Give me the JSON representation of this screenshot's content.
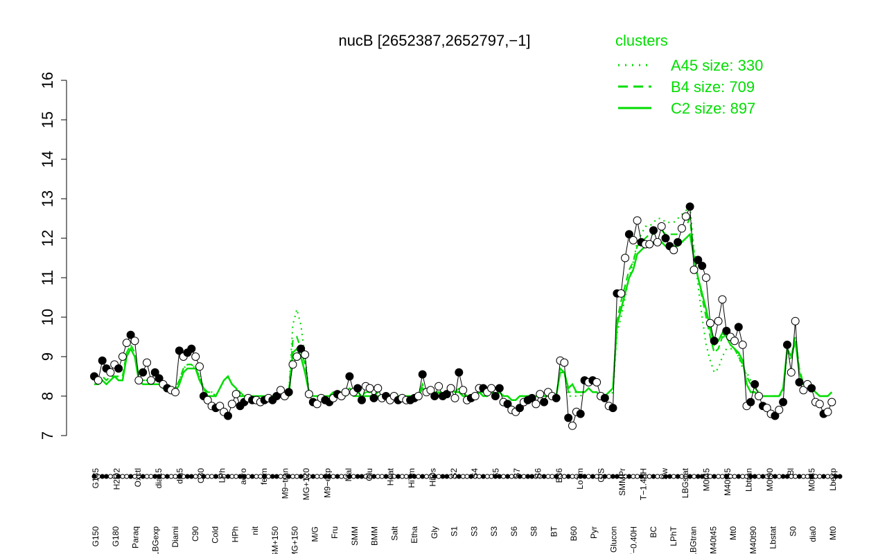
{
  "chart_data": {
    "type": "line",
    "title": "nucB [2652387,2652797,−1]",
    "xlabel": "",
    "ylabel": "",
    "ylim": [
      7,
      16
    ],
    "yticks": [
      7,
      8,
      9,
      10,
      11,
      12,
      13,
      14,
      15,
      16
    ],
    "x_tick_labels_upper": [
      "G135",
      "H2O2",
      "Oxctl",
      "dia15",
      "dia5",
      "C30",
      "LPh",
      "aero",
      "ferm",
      "M9−tran",
      "MG+120",
      "M9−exp",
      "Mal",
      "Glu",
      "Heat",
      "HiTm",
      "HiOs",
      "S2",
      "S4",
      "S5",
      "S7",
      "S6",
      "B36",
      "LoTm",
      "G/S",
      "SMMPr",
      "T−1.40H",
      "Sw",
      "LBGstat",
      "M0t45",
      "M40t45",
      "Lbtran",
      "M0t90",
      "Bl",
      "M0t45",
      "Lbexp"
    ],
    "x_tick_labels_lower": [
      "G150",
      "G180",
      "Paraq",
      "LBGexp",
      "Diami",
      "C90",
      "Cold",
      "HPh",
      "nit",
      "GM+150",
      "MG+150",
      "M/G",
      "Fru",
      "SMM",
      "BMM",
      "Salt",
      "Etha",
      "Gly",
      "S1",
      "S3",
      "S3",
      "S6",
      "S8",
      "BT",
      "B60",
      "Pyr",
      "Glucon",
      "T−0.40H",
      "BC",
      "LPhT",
      "LBGtran",
      "M40t45",
      "Mt0",
      "M40t90",
      "Lbstat",
      "S0",
      "dia0",
      "Mt0"
    ],
    "legend": {
      "title": "clusters",
      "position": "top-right",
      "entries": [
        {
          "label": "A45 size: 330",
          "style": "dotted"
        },
        {
          "label": "B4 size: 709",
          "style": "dashed"
        },
        {
          "label": "C2 size: 897",
          "style": "solid"
        }
      ]
    },
    "colors": {
      "cluster": "#00dd00",
      "series": "#000000"
    },
    "n_conditions": 185,
    "series": [
      {
        "style": "black-points",
        "values": [
          8.5,
          8.4,
          8.9,
          8.7,
          8.6,
          8.8,
          8.7,
          9.0,
          9.35,
          9.55,
          9.4,
          8.4,
          8.6,
          8.85,
          8.4,
          8.6,
          8.45,
          8.3,
          8.2,
          8.15,
          8.1,
          9.15,
          9.0,
          9.1,
          9.2,
          9.0,
          8.75,
          8.0,
          7.9,
          7.75,
          7.7,
          7.75,
          7.6,
          7.5,
          7.8,
          8.05,
          7.75,
          7.85,
          7.95,
          7.9,
          7.9,
          7.85,
          7.9,
          7.95,
          7.9,
          8.0,
          8.15,
          8.0,
          8.1,
          8.8,
          9.0,
          9.2,
          9.05,
          8.05,
          7.85,
          7.8,
          7.95,
          7.9,
          7.85,
          7.95,
          8.05,
          8.0,
          8.1,
          8.5,
          8.1,
          8.2,
          7.9,
          8.25,
          8.2,
          7.95,
          8.2,
          7.95,
          8.0,
          7.9,
          8.0,
          7.9,
          7.95,
          7.9,
          7.9,
          7.95,
          8.0,
          8.55,
          8.1,
          8.15,
          8.0,
          8.25,
          8.0,
          8.05,
          8.2,
          7.95,
          8.6,
          8.15,
          7.9,
          7.95,
          8.0,
          8.2,
          8.2,
          8.1,
          8.2,
          8.0,
          8.2,
          7.85,
          7.8,
          7.65,
          7.6,
          7.7,
          7.85,
          7.9,
          7.95,
          7.8,
          8.05,
          7.85,
          8.1,
          8.0,
          7.95,
          8.9,
          8.85,
          7.45,
          7.25,
          7.6,
          7.55,
          8.4,
          8.35,
          8.4,
          8.35,
          8.0,
          7.95,
          7.75,
          7.7,
          10.6,
          10.6,
          11.5,
          12.1,
          11.95,
          12.45,
          11.9,
          11.85,
          11.85,
          12.2,
          11.9,
          12.3,
          12.0,
          11.8,
          11.7,
          11.9,
          12.25,
          12.55,
          12.8,
          11.2,
          11.45,
          11.3,
          11.0,
          9.85,
          9.4,
          9.9,
          10.45,
          9.65,
          9.5,
          9.4,
          9.75,
          9.3,
          7.75,
          7.85,
          8.3,
          8.0,
          7.75,
          7.7,
          7.55,
          7.5,
          7.65,
          7.85,
          9.3,
          8.6,
          9.9,
          8.35,
          8.15,
          8.3,
          8.2,
          7.85,
          7.8,
          7.55,
          7.6,
          7.85
        ]
      },
      {
        "name": "C2 size: 897",
        "style": "solid",
        "values": [
          8.3,
          8.3,
          8.4,
          8.3,
          8.4,
          8.5,
          8.4,
          8.4,
          9.0,
          9.2,
          9.0,
          8.4,
          8.3,
          8.3,
          8.3,
          8.3,
          8.3,
          8.2,
          8.2,
          8.1,
          8.1,
          8.3,
          8.6,
          8.7,
          8.7,
          8.7,
          8.4,
          8.2,
          8.0,
          8.0,
          8.0,
          8.2,
          8.4,
          8.5,
          8.3,
          8.2,
          8.0,
          8.0,
          8.0,
          8.0,
          8.0,
          8.0,
          8.0,
          8.0,
          8.0,
          8.0,
          8.0,
          8.0,
          8.0,
          9.1,
          9.2,
          9.0,
          8.6,
          8.1,
          8.0,
          8.0,
          8.0,
          8.0,
          8.0,
          8.1,
          8.1,
          8.0,
          8.0,
          8.1,
          8.0,
          8.0,
          8.0,
          8.0,
          8.0,
          8.0,
          8.0,
          8.0,
          8.0,
          8.0,
          8.0,
          8.0,
          8.0,
          8.0,
          8.0,
          8.0,
          8.0,
          8.2,
          8.1,
          8.1,
          8.0,
          8.1,
          8.0,
          8.1,
          8.2,
          8.1,
          8.1,
          8.0,
          8.0,
          8.0,
          8.0,
          8.1,
          8.0,
          8.0,
          8.1,
          8.0,
          8.1,
          8.0,
          8.0,
          7.9,
          7.9,
          8.0,
          8.0,
          8.0,
          8.0,
          8.0,
          8.0,
          8.0,
          8.0,
          8.0,
          8.0,
          8.6,
          8.6,
          8.2,
          8.3,
          8.1,
          8.1,
          8.1,
          8.2,
          8.1,
          8.1,
          8.0,
          8.0,
          8.1,
          8.2,
          9.8,
          10.2,
          10.6,
          11.0,
          11.2,
          11.6,
          11.7,
          11.8,
          11.8,
          11.9,
          11.9,
          11.9,
          11.8,
          11.8,
          11.8,
          11.8,
          11.9,
          12.0,
          12.1,
          11.5,
          11.0,
          10.6,
          10.2,
          9.7,
          9.3,
          9.4,
          9.6,
          9.5,
          9.3,
          9.2,
          9.1,
          8.9,
          8.3,
          8.1,
          8.1,
          8.0,
          8.0,
          8.0,
          8.0,
          8.0,
          8.0,
          8.2,
          9.2,
          9.0,
          9.4,
          8.6,
          8.3,
          8.3,
          8.2,
          8.1,
          8.0,
          8.0,
          8.0,
          8.1
        ]
      },
      {
        "name": "B4 size: 709",
        "style": "dashed",
        "values": [
          8.4,
          8.4,
          8.5,
          8.4,
          8.5,
          8.5,
          8.5,
          8.5,
          9.1,
          9.3,
          9.1,
          8.5,
          8.4,
          8.4,
          8.4,
          8.4,
          8.4,
          8.3,
          8.3,
          8.2,
          8.2,
          8.4,
          8.7,
          8.8,
          8.8,
          8.7,
          8.5,
          8.2,
          8.1,
          8.1,
          8.0,
          8.2,
          8.4,
          8.5,
          8.3,
          8.2,
          8.1,
          8.0,
          8.0,
          8.0,
          8.0,
          8.0,
          8.0,
          8.0,
          8.0,
          8.0,
          8.0,
          8.0,
          8.1,
          9.4,
          9.5,
          9.2,
          8.8,
          8.1,
          8.0,
          8.0,
          8.0,
          8.0,
          8.0,
          8.1,
          8.1,
          8.1,
          8.1,
          8.2,
          8.1,
          8.1,
          8.0,
          8.1,
          8.1,
          8.0,
          8.1,
          8.0,
          8.0,
          8.0,
          8.0,
          8.0,
          8.0,
          8.0,
          8.0,
          8.0,
          8.0,
          8.3,
          8.1,
          8.1,
          8.1,
          8.1,
          8.1,
          8.1,
          8.2,
          8.1,
          8.2,
          8.1,
          8.0,
          8.0,
          8.0,
          8.1,
          8.1,
          8.1,
          8.1,
          8.0,
          8.1,
          8.0,
          8.0,
          7.9,
          7.9,
          8.0,
          8.0,
          8.0,
          8.0,
          8.0,
          8.0,
          8.0,
          8.0,
          8.0,
          8.0,
          8.7,
          8.6,
          8.1,
          8.1,
          8.1,
          8.1,
          8.1,
          8.2,
          8.1,
          8.1,
          8.0,
          8.0,
          8.1,
          8.2,
          9.9,
          10.4,
          10.8,
          11.2,
          11.4,
          11.8,
          11.9,
          12.0,
          12.1,
          12.1,
          12.2,
          12.2,
          12.1,
          12.1,
          12.1,
          12.1,
          12.2,
          12.3,
          12.5,
          11.6,
          11.0,
          10.5,
          10.0,
          9.5,
          9.1,
          9.2,
          9.5,
          9.5,
          9.3,
          9.2,
          9.0,
          8.8,
          8.5,
          8.3,
          8.2,
          8.1,
          8.0,
          8.0,
          8.0,
          8.0,
          8.0,
          8.2,
          9.2,
          9.0,
          9.5,
          8.7,
          8.3,
          8.3,
          8.2,
          8.1,
          8.0,
          8.0,
          8.0,
          8.1
        ]
      },
      {
        "name": "A45 size: 330",
        "style": "dotted",
        "values": [
          8.4,
          8.4,
          8.5,
          8.4,
          8.5,
          8.5,
          8.5,
          8.5,
          9.0,
          9.2,
          9.0,
          8.5,
          8.4,
          8.4,
          8.4,
          8.4,
          8.4,
          8.3,
          8.3,
          8.2,
          8.2,
          8.4,
          8.7,
          8.8,
          8.8,
          8.7,
          8.5,
          8.2,
          8.1,
          8.1,
          8.0,
          8.2,
          8.4,
          8.5,
          8.3,
          8.2,
          8.1,
          8.0,
          8.0,
          8.0,
          8.0,
          8.0,
          8.0,
          8.0,
          8.0,
          8.0,
          8.0,
          8.0,
          8.1,
          9.8,
          10.2,
          9.8,
          9.0,
          8.1,
          8.0,
          8.0,
          8.0,
          8.0,
          8.0,
          8.1,
          8.1,
          8.1,
          8.1,
          8.2,
          8.1,
          8.1,
          8.0,
          8.1,
          8.1,
          8.0,
          8.1,
          8.0,
          8.0,
          8.0,
          8.0,
          8.0,
          8.0,
          8.0,
          8.0,
          8.0,
          8.0,
          8.3,
          8.1,
          8.1,
          8.1,
          8.1,
          8.1,
          8.1,
          8.2,
          8.1,
          8.2,
          8.1,
          8.0,
          8.0,
          8.0,
          8.1,
          8.1,
          8.1,
          8.1,
          8.0,
          8.1,
          8.0,
          8.0,
          7.9,
          7.9,
          8.0,
          8.0,
          8.0,
          8.0,
          8.0,
          8.0,
          8.0,
          8.0,
          8.0,
          8.0,
          8.7,
          8.6,
          8.0,
          8.0,
          8.0,
          8.0,
          8.1,
          8.2,
          8.1,
          8.1,
          8.0,
          8.0,
          8.0,
          8.1,
          9.6,
          10.0,
          10.5,
          11.0,
          11.4,
          11.9,
          12.1,
          12.3,
          12.3,
          12.4,
          12.5,
          12.5,
          12.4,
          12.4,
          12.4,
          12.5,
          12.6,
          12.7,
          12.8,
          11.7,
          10.8,
          10.0,
          9.3,
          8.9,
          8.6,
          8.7,
          9.0,
          9.2,
          9.2,
          9.2,
          9.0,
          8.7,
          8.6,
          8.4,
          8.2,
          8.1,
          8.0,
          8.0,
          8.0,
          8.0,
          8.0,
          8.1,
          9.1,
          8.9,
          9.4,
          8.6,
          8.3,
          8.3,
          8.2,
          8.1,
          8.0,
          8.0,
          8.0,
          8.1
        ]
      }
    ]
  }
}
